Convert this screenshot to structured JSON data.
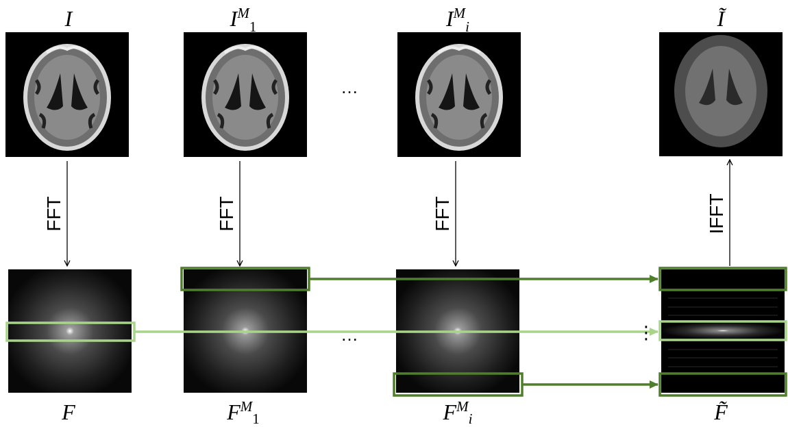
{
  "labels": {
    "top": [
      {
        "base": "I"
      },
      {
        "base": "I",
        "sup": "M",
        "sub": "1"
      },
      {
        "base": "I",
        "sup": "M",
        "sub": "i"
      },
      {
        "base": "Ĩ"
      }
    ],
    "bottom": [
      {
        "base": "F"
      },
      {
        "base": "F",
        "sup": "M",
        "sub": "1"
      },
      {
        "base": "F",
        "sup": "M",
        "sub": "i"
      },
      {
        "base": "F̃"
      }
    ]
  },
  "operations": [
    "FFT",
    "FFT",
    "FFT",
    "IFFT"
  ],
  "ellipses": [
    "…",
    "…"
  ],
  "vdots": "⋮"
}
